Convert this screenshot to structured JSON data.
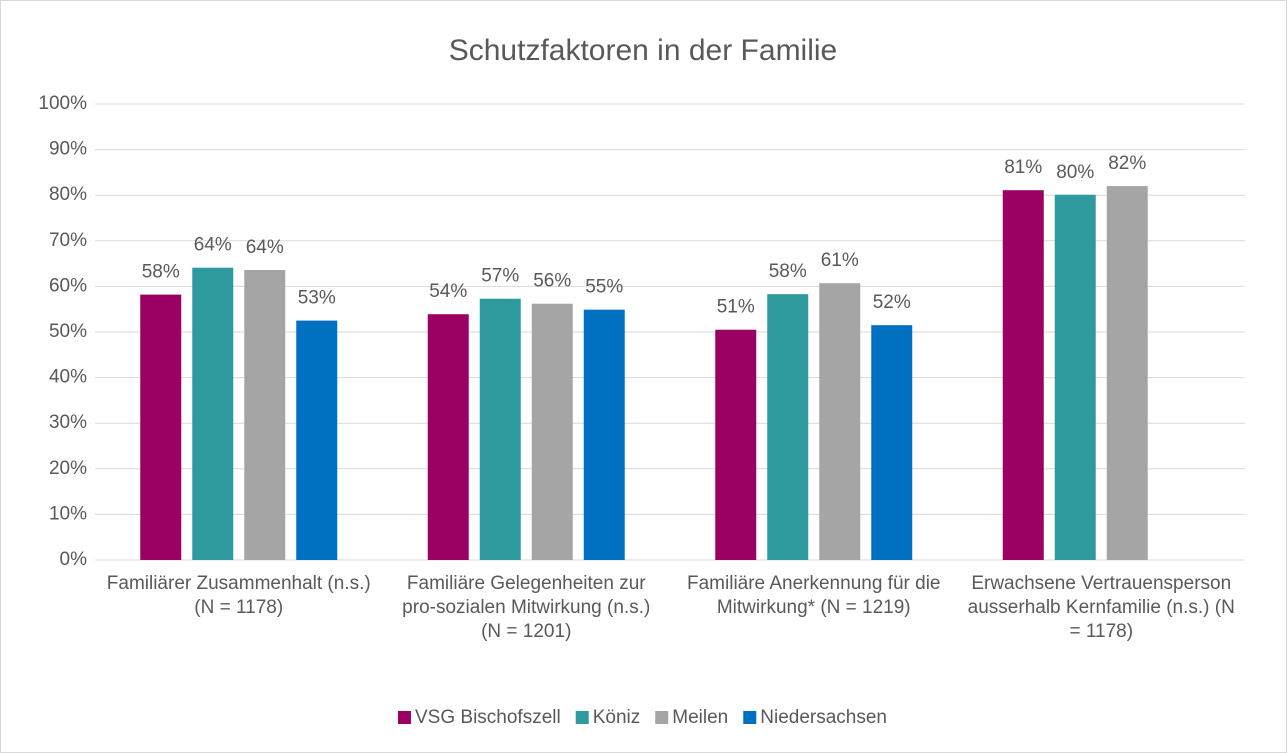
{
  "chart_data": {
    "type": "bar",
    "title": "Schutzfaktoren in der Familie",
    "categories": [
      "Familiärer Zusammenhalt (n.s.) (N = 1178)",
      "Familiäre Gelegenheiten zur pro-sozialen Mitwirkung (n.s.) (N = 1201)",
      "Familiäre Anerkennung für die Mitwirkung* (N = 1219)",
      "Erwachsene Vertrauensperson ausserhalb Kernfamilie (n.s.) (N = 1178)"
    ],
    "series": [
      {
        "name": "VSG Bischofszell",
        "color": "#9b0063",
        "values": [
          58.2,
          53.9,
          50.5,
          81.1
        ],
        "value_labels": [
          "58%",
          "54%",
          "51%",
          "81%"
        ]
      },
      {
        "name": "Köniz",
        "color": "#2e9a9e",
        "values": [
          64.1,
          57.3,
          58.3,
          80.1
        ],
        "value_labels": [
          "64%",
          "57%",
          "58%",
          "80%"
        ]
      },
      {
        "name": "Meilen",
        "color": "#a5a5a5",
        "values": [
          63.6,
          56.2,
          60.7,
          82.0
        ],
        "value_labels": [
          "64%",
          "56%",
          "61%",
          "82%"
        ]
      },
      {
        "name": "Niedersachsen",
        "color": "#0070c0",
        "values": [
          52.5,
          54.9,
          51.5,
          null
        ],
        "value_labels": [
          "53%",
          "55%",
          "52%",
          null
        ]
      }
    ],
    "ylim": [
      0,
      100
    ],
    "yticks": [
      {
        "value": 0,
        "label": "0%"
      },
      {
        "value": 10,
        "label": "10%"
      },
      {
        "value": 20,
        "label": "20%"
      },
      {
        "value": 30,
        "label": "30%"
      },
      {
        "value": 40,
        "label": "40%"
      },
      {
        "value": 50,
        "label": "50%"
      },
      {
        "value": 60,
        "label": "60%"
      },
      {
        "value": 70,
        "label": "70%"
      },
      {
        "value": 80,
        "label": "80%"
      },
      {
        "value": 90,
        "label": "90%"
      },
      {
        "value": 100,
        "label": "100%"
      }
    ],
    "grid": true,
    "legend": "bottom"
  }
}
